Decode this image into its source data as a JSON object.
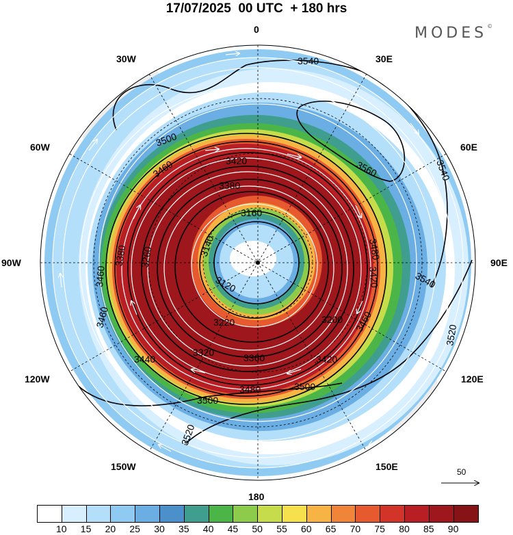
{
  "title": "17/07/2025  00 UTC  + 180 hrs",
  "logo": "MODES",
  "logo_mark": "©",
  "longitude_labels": [
    "0",
    "30E",
    "60E",
    "90E",
    "120E",
    "150E",
    "180",
    "150W",
    "120W",
    "90W",
    "60W",
    "30W"
  ],
  "contour_labels": [
    "3540",
    "3560",
    "3540",
    "3540",
    "3520",
    "3500",
    "3460",
    "3420",
    "3380",
    "3160",
    "3140",
    "3120",
    "3220",
    "3200",
    "3320",
    "3360",
    "3420",
    "3460",
    "3480",
    "3500",
    "3500",
    "3440",
    "3520",
    "3460",
    "3460",
    "3380",
    "3260",
    "3420",
    "3480"
  ],
  "reference_vector_label": "50",
  "colorbar": {
    "labels": [
      "10",
      "15",
      "20",
      "25",
      "30",
      "35",
      "40",
      "45",
      "50",
      "55",
      "60",
      "65",
      "70",
      "75",
      "80",
      "85",
      "90"
    ],
    "colors": [
      "#ffffff",
      "#d7efff",
      "#b3dffb",
      "#8ecaf2",
      "#6aaee4",
      "#4b8fcb",
      "#3f9e8e",
      "#4cb548",
      "#8ccc4a",
      "#c7dc4b",
      "#f6e04b",
      "#f7b343",
      "#f0853a",
      "#e75a30",
      "#d2342a",
      "#b71f24",
      "#9d171c",
      "#861417"
    ]
  }
}
